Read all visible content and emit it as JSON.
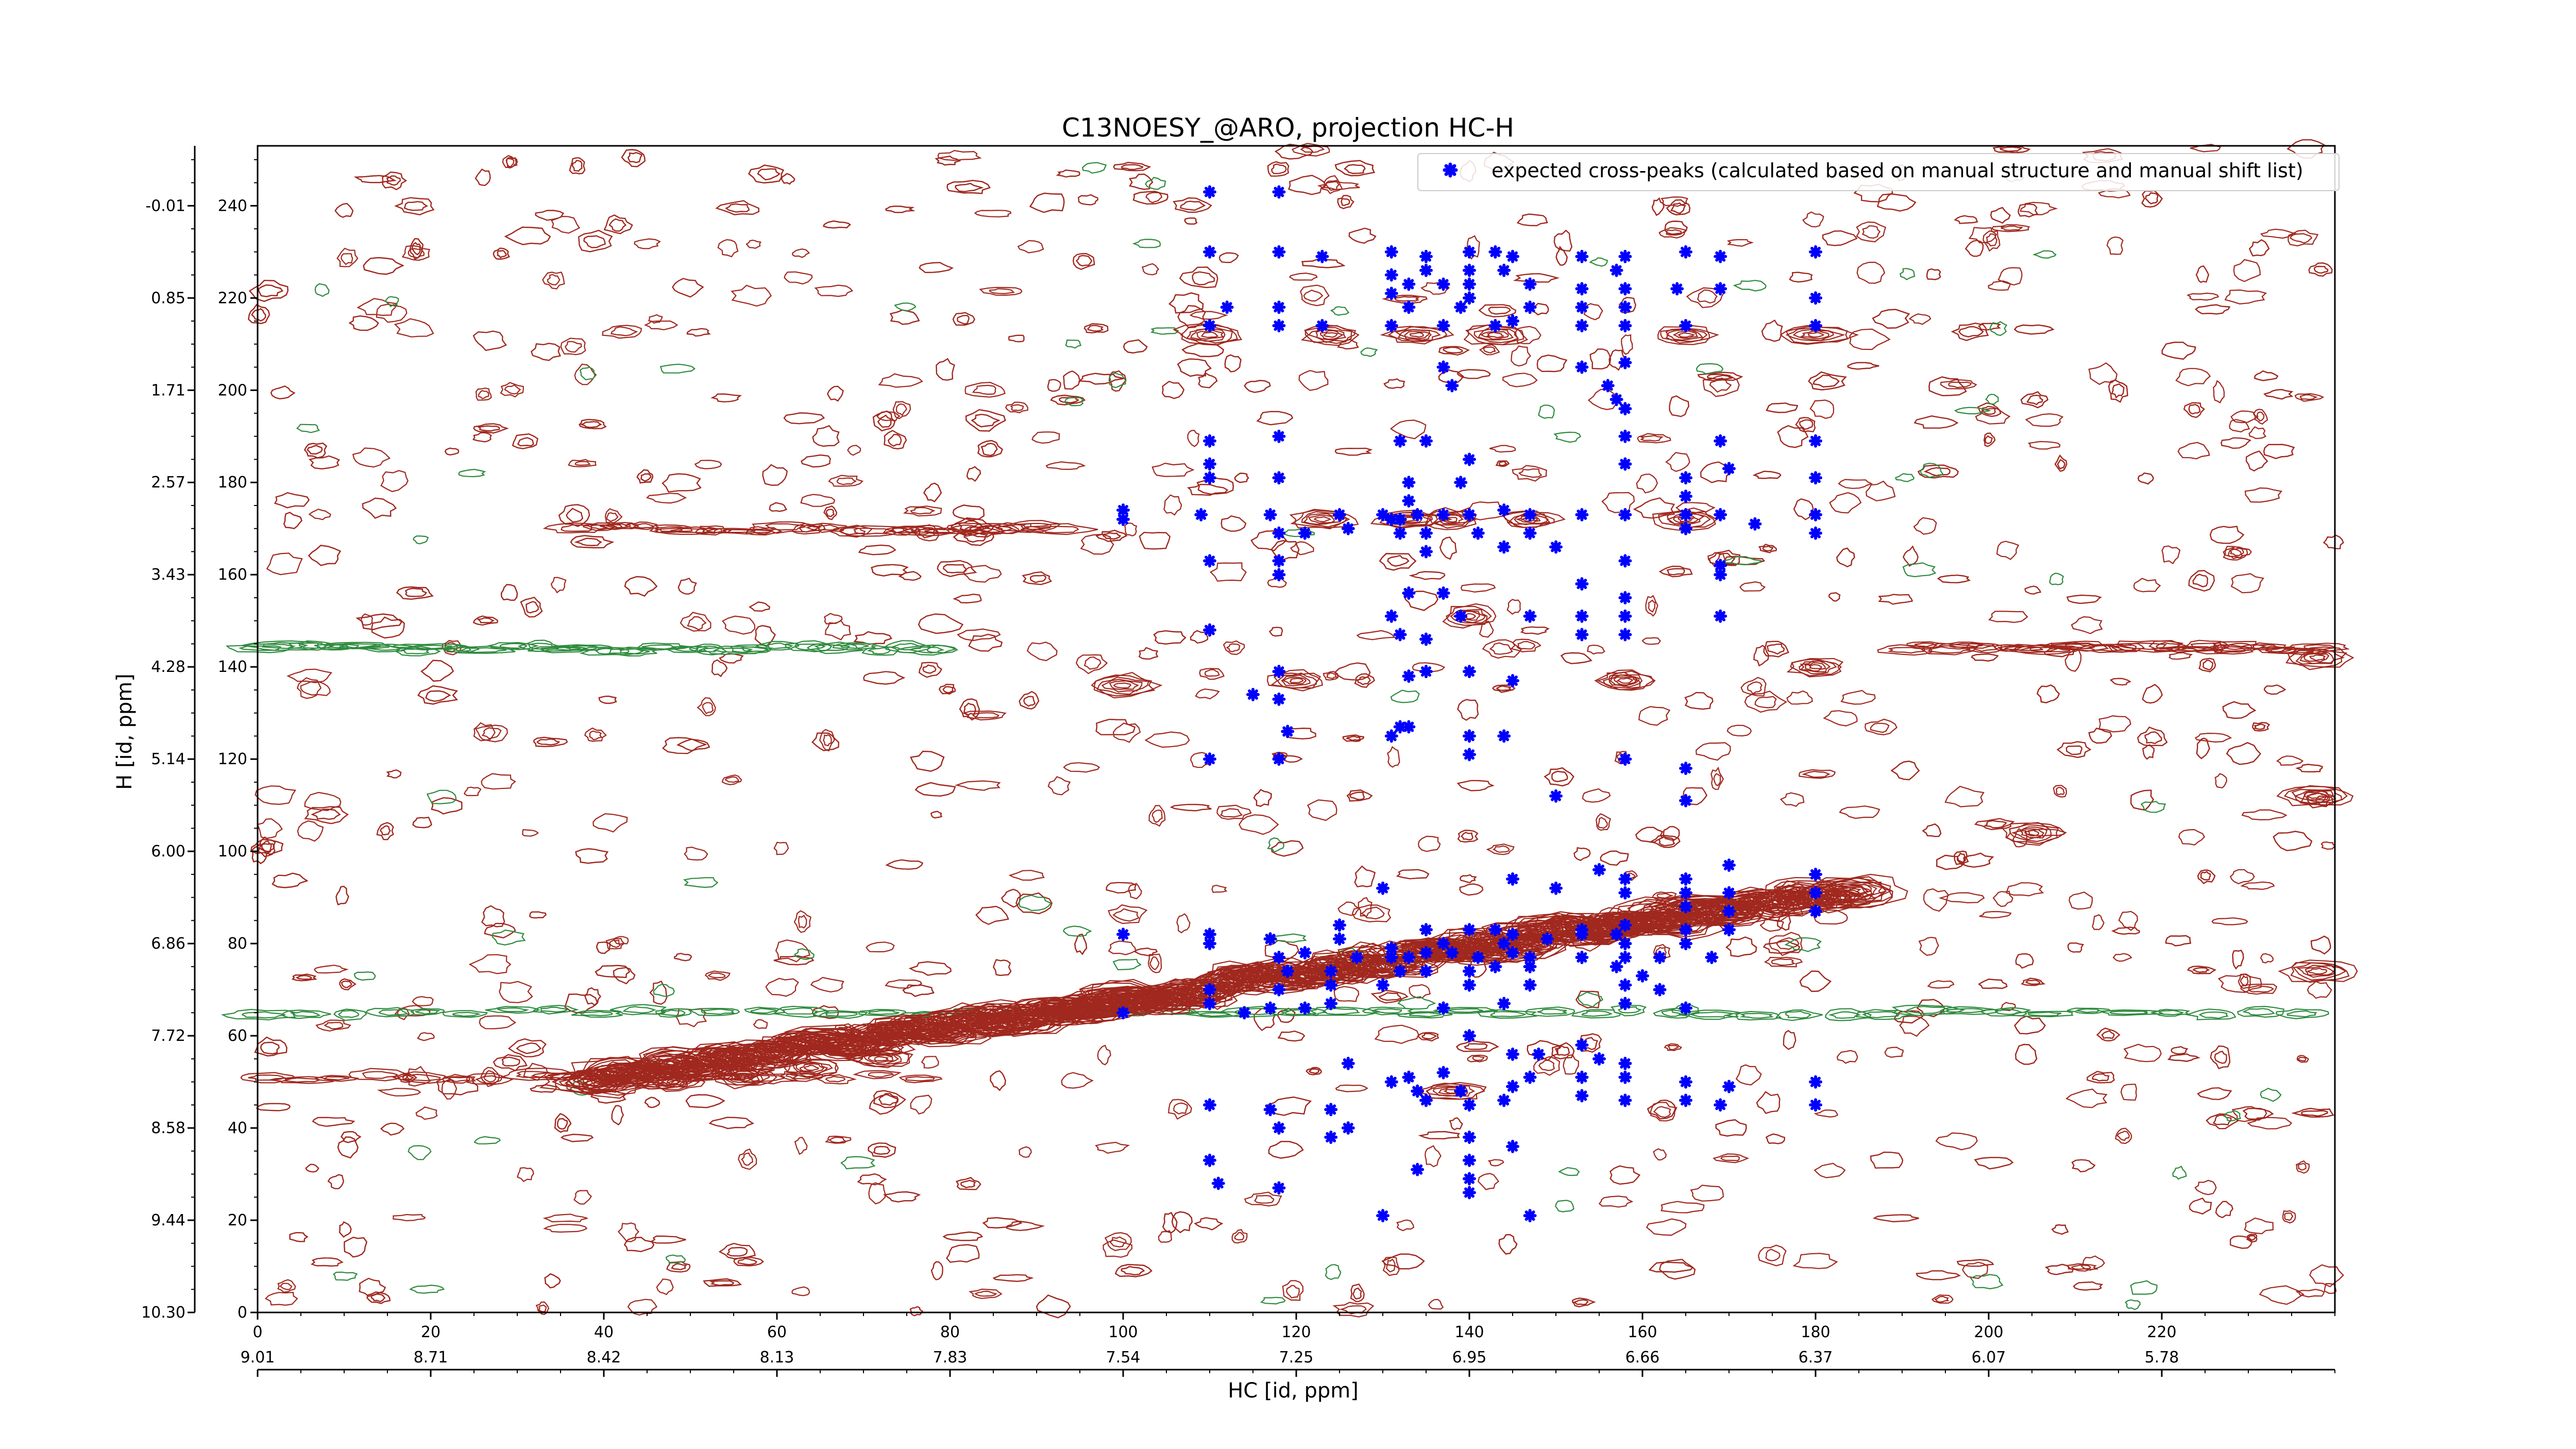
{
  "chart_data": {
    "type": "scatter",
    "title": "C13NOESY_@ARO, projection HC-H",
    "xlabel": "HC [id, ppm]",
    "ylabel": "H [id, ppm]",
    "xlim": [
      0,
      240
    ],
    "ylim": [
      0,
      253
    ],
    "x_ticks_top": [
      "0",
      "20",
      "40",
      "60",
      "80",
      "100",
      "120",
      "140",
      "160",
      "180",
      "200",
      "220"
    ],
    "x_ticks_top_values": [
      0,
      20,
      40,
      60,
      80,
      100,
      120,
      140,
      160,
      180,
      200,
      220
    ],
    "x_ticks_bottom": [
      "9.01",
      "8.71",
      "8.42",
      "8.13",
      "7.83",
      "7.54",
      "7.25",
      "6.95",
      "6.66",
      "6.37",
      "6.07",
      "5.78"
    ],
    "x_ticks_bottom_values": [
      0,
      20,
      40,
      60,
      80,
      100,
      120,
      140,
      160,
      180,
      200,
      220
    ],
    "y_ticks_index": [
      "0",
      "20",
      "40",
      "60",
      "80",
      "100",
      "120",
      "140",
      "160",
      "180",
      "200",
      "220",
      "240"
    ],
    "y_ticks_index_values": [
      0,
      20,
      40,
      60,
      80,
      100,
      120,
      140,
      160,
      180,
      200,
      220,
      240
    ],
    "y_ticks_ppm": [
      "10.30",
      "9.44",
      "8.58",
      "7.72",
      "6.86",
      "6.00",
      "5.14",
      "4.28",
      "3.43",
      "2.57",
      "1.71",
      "0.85",
      "-0.01"
    ],
    "y_ticks_ppm_values": [
      0,
      20,
      40,
      60,
      80,
      100,
      120,
      140,
      160,
      180,
      200,
      220,
      240
    ],
    "legend": {
      "position": "top-right",
      "entries": [
        "expected cross-peaks (calculated based on manual structure and manual shift list)"
      ]
    },
    "grid": false,
    "colors": {
      "points": "#0000ff",
      "positive_contours": "#a0281e",
      "negative_contours": "#2e8b3e",
      "axes": "#000000"
    },
    "series": [
      {
        "name": "expected cross-peaks (calculated based on manual structure and manual shift list)",
        "points": [
          [
            110,
            243
          ],
          [
            118,
            243
          ],
          [
            110,
            230
          ],
          [
            118,
            230
          ],
          [
            123,
            229
          ],
          [
            131,
            230
          ],
          [
            135,
            229
          ],
          [
            140,
            230
          ],
          [
            143,
            230
          ],
          [
            145,
            229
          ],
          [
            153,
            229
          ],
          [
            158,
            229
          ],
          [
            165,
            230
          ],
          [
            169,
            229
          ],
          [
            180,
            230
          ],
          [
            131,
            225
          ],
          [
            135,
            226
          ],
          [
            140,
            226
          ],
          [
            144,
            226
          ],
          [
            157,
            226
          ],
          [
            133,
            223
          ],
          [
            137,
            223
          ],
          [
            140,
            223
          ],
          [
            147,
            223
          ],
          [
            153,
            222
          ],
          [
            131,
            221
          ],
          [
            158,
            222
          ],
          [
            140,
            220
          ],
          [
            164,
            222
          ],
          [
            169,
            222
          ],
          [
            180,
            220
          ],
          [
            112,
            218
          ],
          [
            118,
            218
          ],
          [
            133,
            218
          ],
          [
            139,
            218
          ],
          [
            147,
            218
          ],
          [
            153,
            218
          ],
          [
            158,
            218
          ],
          [
            123,
            214
          ],
          [
            131,
            214
          ],
          [
            137,
            214
          ],
          [
            143,
            214
          ],
          [
            145,
            215
          ],
          [
            153,
            214
          ],
          [
            158,
            214
          ],
          [
            110,
            214
          ],
          [
            118,
            214
          ],
          [
            165,
            214
          ],
          [
            180,
            214
          ],
          [
            137,
            205
          ],
          [
            153,
            205
          ],
          [
            158,
            206
          ],
          [
            156,
            201
          ],
          [
            138,
            201
          ],
          [
            157,
            198
          ],
          [
            158,
            196
          ],
          [
            110,
            189
          ],
          [
            118,
            190
          ],
          [
            132,
            189
          ],
          [
            135,
            189
          ],
          [
            158,
            190
          ],
          [
            169,
            189
          ],
          [
            180,
            189
          ],
          [
            110,
            184
          ],
          [
            140,
            185
          ],
          [
            158,
            184
          ],
          [
            170,
            183
          ],
          [
            165,
            181
          ],
          [
            110,
            181
          ],
          [
            118,
            181
          ],
          [
            133,
            180
          ],
          [
            139,
            180
          ],
          [
            133,
            176
          ],
          [
            165,
            177
          ],
          [
            180,
            181
          ],
          [
            100,
            174
          ],
          [
            109,
            173
          ],
          [
            117,
            173
          ],
          [
            125,
            173
          ],
          [
            130,
            173
          ],
          [
            132,
            172
          ],
          [
            134,
            173
          ],
          [
            137,
            173
          ],
          [
            140,
            173
          ],
          [
            144,
            174
          ],
          [
            147,
            173
          ],
          [
            153,
            173
          ],
          [
            158,
            173
          ],
          [
            165,
            173
          ],
          [
            169,
            173
          ],
          [
            180,
            173
          ],
          [
            100,
            172
          ],
          [
            118,
            169
          ],
          [
            121,
            169
          ],
          [
            126,
            170
          ],
          [
            131,
            172
          ],
          [
            132,
            169
          ],
          [
            135,
            169
          ],
          [
            141,
            169
          ],
          [
            147,
            169
          ],
          [
            165,
            170
          ],
          [
            173,
            171
          ],
          [
            180,
            169
          ],
          [
            135,
            165
          ],
          [
            144,
            166
          ],
          [
            150,
            166
          ],
          [
            110,
            163
          ],
          [
            118,
            163
          ],
          [
            158,
            163
          ],
          [
            169,
            162
          ],
          [
            118,
            160
          ],
          [
            169,
            160
          ],
          [
            133,
            156
          ],
          [
            137,
            156
          ],
          [
            153,
            158
          ],
          [
            158,
            155
          ],
          [
            131,
            151
          ],
          [
            147,
            151
          ],
          [
            139,
            151
          ],
          [
            153,
            151
          ],
          [
            158,
            151
          ],
          [
            169,
            151
          ],
          [
            110,
            148
          ],
          [
            132,
            147
          ],
          [
            135,
            146
          ],
          [
            153,
            147
          ],
          [
            158,
            147
          ],
          [
            118,
            139
          ],
          [
            133,
            138
          ],
          [
            135,
            139
          ],
          [
            140,
            139
          ],
          [
            145,
            137
          ],
          [
            115,
            134
          ],
          [
            118,
            133
          ],
          [
            132,
            127
          ],
          [
            131,
            125
          ],
          [
            133,
            127
          ],
          [
            140,
            125
          ],
          [
            144,
            125
          ],
          [
            119,
            126
          ],
          [
            110,
            120
          ],
          [
            118,
            120
          ],
          [
            140,
            121
          ],
          [
            158,
            120
          ],
          [
            165,
            118
          ],
          [
            150,
            112
          ],
          [
            165,
            111
          ],
          [
            155,
            96
          ],
          [
            158,
            94
          ],
          [
            165,
            94
          ],
          [
            170,
            97
          ],
          [
            180,
            95
          ],
          [
            145,
            94
          ],
          [
            150,
            92
          ],
          [
            130,
            92
          ],
          [
            158,
            91
          ],
          [
            165,
            91
          ],
          [
            170,
            91
          ],
          [
            180,
            91
          ],
          [
            165,
            88
          ],
          [
            170,
            87
          ],
          [
            180,
            87
          ],
          [
            110,
            82
          ],
          [
            117,
            81
          ],
          [
            125,
            84
          ],
          [
            135,
            83
          ],
          [
            140,
            83
          ],
          [
            143,
            83
          ],
          [
            145,
            82
          ],
          [
            153,
            83
          ],
          [
            157,
            82
          ],
          [
            158,
            84
          ],
          [
            165,
            83
          ],
          [
            170,
            83
          ],
          [
            100,
            82
          ],
          [
            110,
            80
          ],
          [
            125,
            81
          ],
          [
            131,
            79
          ],
          [
            137,
            80
          ],
          [
            144,
            80
          ],
          [
            149,
            81
          ],
          [
            153,
            82
          ],
          [
            158,
            80
          ],
          [
            165,
            80
          ],
          [
            118,
            77
          ],
          [
            121,
            78
          ],
          [
            127,
            77
          ],
          [
            131,
            77
          ],
          [
            133,
            77
          ],
          [
            135,
            78
          ],
          [
            138,
            78
          ],
          [
            141,
            77
          ],
          [
            145,
            78
          ],
          [
            147,
            77
          ],
          [
            153,
            77
          ],
          [
            158,
            77
          ],
          [
            162,
            77
          ],
          [
            168,
            77
          ],
          [
            119,
            74
          ],
          [
            124,
            74
          ],
          [
            132,
            74
          ],
          [
            135,
            74
          ],
          [
            140,
            74
          ],
          [
            143,
            75
          ],
          [
            147,
            75
          ],
          [
            157,
            75
          ],
          [
            160,
            73
          ],
          [
            110,
            70
          ],
          [
            118,
            70
          ],
          [
            124,
            71
          ],
          [
            130,
            71
          ],
          [
            140,
            71
          ],
          [
            147,
            71
          ],
          [
            158,
            71
          ],
          [
            162,
            70
          ],
          [
            110,
            67
          ],
          [
            117,
            66
          ],
          [
            121,
            66
          ],
          [
            124,
            67
          ],
          [
            137,
            66
          ],
          [
            144,
            67
          ],
          [
            158,
            67
          ],
          [
            165,
            66
          ],
          [
            100,
            65
          ],
          [
            114,
            65
          ],
          [
            140,
            60
          ],
          [
            145,
            56
          ],
          [
            148,
            56
          ],
          [
            153,
            58
          ],
          [
            155,
            55
          ],
          [
            158,
            54
          ],
          [
            147,
            51
          ],
          [
            137,
            52
          ],
          [
            133,
            51
          ],
          [
            131,
            50
          ],
          [
            134,
            48
          ],
          [
            139,
            48
          ],
          [
            145,
            49
          ],
          [
            153,
            51
          ],
          [
            158,
            51
          ],
          [
            165,
            50
          ],
          [
            170,
            49
          ],
          [
            180,
            50
          ],
          [
            126,
            54
          ],
          [
            135,
            46
          ],
          [
            140,
            45
          ],
          [
            144,
            46
          ],
          [
            153,
            47
          ],
          [
            158,
            46
          ],
          [
            165,
            46
          ],
          [
            169,
            45
          ],
          [
            180,
            45
          ],
          [
            110,
            45
          ],
          [
            117,
            44
          ],
          [
            124,
            44
          ],
          [
            126,
            40
          ],
          [
            118,
            40
          ],
          [
            124,
            38
          ],
          [
            140,
            38
          ],
          [
            145,
            36
          ],
          [
            110,
            33
          ],
          [
            111,
            28
          ],
          [
            118,
            27
          ],
          [
            134,
            31
          ],
          [
            140,
            33
          ],
          [
            140,
            29
          ],
          [
            140,
            26
          ],
          [
            147,
            21
          ],
          [
            130,
            21
          ]
        ]
      }
    ]
  }
}
